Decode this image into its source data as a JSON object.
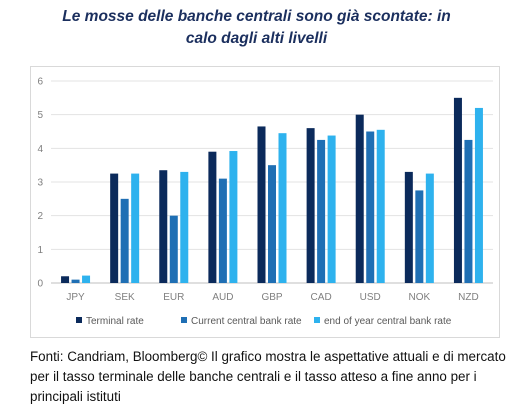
{
  "header": {
    "title_line1": "Le mosse delle banche centrali sono già scontate: in",
    "title_line2": "calo dagli alti livelli"
  },
  "footer": {
    "source": "Fonti: Candriam, Bloomberg© Il grafico mostra le aspettative attuali e di mercato per il tasso terminale delle banche centrali e il tasso atteso a fine anno per i principali istituti"
  },
  "chart_data": {
    "type": "bar",
    "categories": [
      "JPY",
      "SEK",
      "EUR",
      "AUD",
      "GBP",
      "CAD",
      "USD",
      "NOK",
      "NZD"
    ],
    "series": [
      {
        "name": "Terminal rate",
        "color": "#0b2a5b",
        "values": [
          0.2,
          3.25,
          3.35,
          3.9,
          4.65,
          4.6,
          5.0,
          3.3,
          5.5
        ]
      },
      {
        "name": "Current central bank rate",
        "color": "#1f6fb4",
        "values": [
          0.1,
          2.5,
          2.0,
          3.1,
          3.5,
          4.25,
          4.5,
          2.75,
          4.25
        ]
      },
      {
        "name": "end of year central bank rate",
        "color": "#2eb2ee",
        "values": [
          0.22,
          3.25,
          3.3,
          3.92,
          4.45,
          4.38,
          4.55,
          3.25,
          5.2
        ]
      }
    ],
    "ylim": [
      0,
      6
    ],
    "yticks": [
      0,
      1,
      2,
      3,
      4,
      5,
      6
    ],
    "grid": true,
    "legend": "bottom"
  }
}
